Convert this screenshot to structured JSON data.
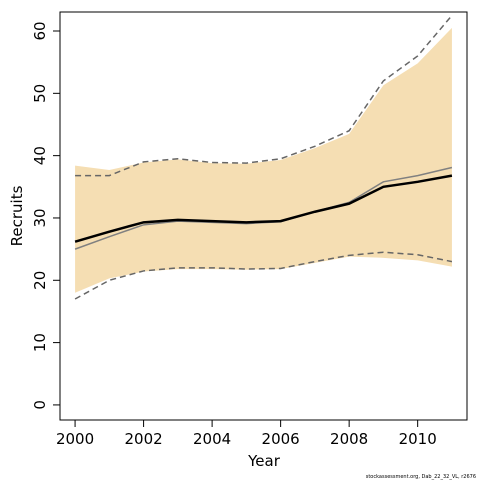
{
  "chart_data": {
    "type": "line",
    "x_label": "Year",
    "y_label": "Recruits",
    "footnote": "stockassessment.org, Dab_22_32_VL, r2676",
    "x": [
      2000,
      2001,
      2002,
      2003,
      2004,
      2005,
      2006,
      2007,
      2008,
      2009,
      2010,
      2011
    ],
    "band": {
      "color": "#f5deb3",
      "upper": [
        38.4,
        37.7,
        38.9,
        39.4,
        38.8,
        38.7,
        39.3,
        41.2,
        43.5,
        51.3,
        54.8,
        60.5
      ],
      "lower": [
        18,
        20.3,
        21.4,
        21.8,
        21.8,
        21.7,
        21.8,
        22.8,
        23.8,
        23.6,
        23.2,
        22.2
      ]
    },
    "series": [
      {
        "color": "#666666",
        "dashed": true,
        "width": 1.5,
        "values": [
          36.8,
          36.8,
          39,
          39.5,
          38.9,
          38.8,
          39.5,
          41.5,
          44,
          52,
          56,
          62.5
        ]
      },
      {
        "color": "#666666",
        "dashed": true,
        "width": 1.5,
        "values": [
          17,
          20,
          21.5,
          22,
          22,
          21.8,
          21.9,
          23,
          24,
          24.5,
          24.1,
          23
        ]
      },
      {
        "color": "#808080",
        "dashed": false,
        "width": 1.5,
        "values": [
          25,
          27,
          28.9,
          29.5,
          29.3,
          29.1,
          29.4,
          31,
          32.5,
          35.8,
          36.8,
          38.1
        ]
      },
      {
        "color": "#000000",
        "dashed": false,
        "width": 2.5,
        "values": [
          26.2,
          27.8,
          29.3,
          29.7,
          29.5,
          29.3,
          29.5,
          31,
          32.3,
          35,
          35.8,
          36.8
        ]
      }
    ],
    "xlim": [
      1999.56,
      2011.44
    ],
    "xticks": [
      2000,
      2002,
      2004,
      2006,
      2008,
      2010
    ],
    "ylim": [
      -2.42,
      63.05
    ],
    "yticks": [
      0,
      10,
      20,
      30,
      40,
      50,
      60
    ]
  }
}
